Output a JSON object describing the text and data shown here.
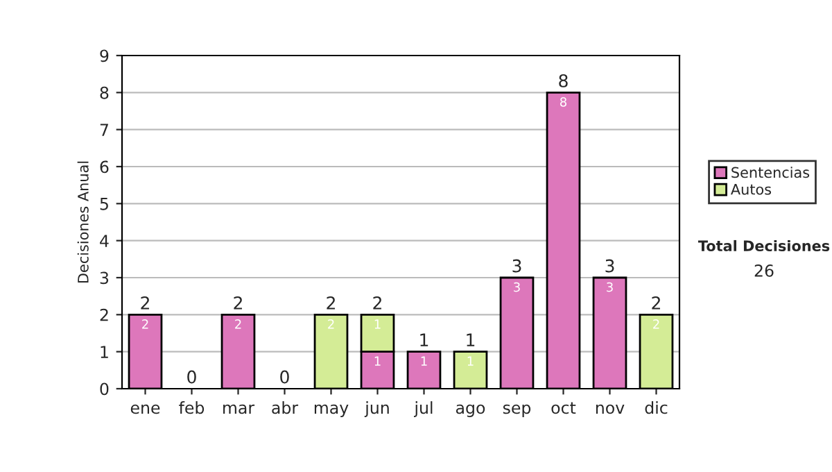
{
  "chart_data": {
    "type": "bar",
    "stacked": true,
    "ylabel": "Decisiones Anual",
    "categories": [
      "ene",
      "feb",
      "mar",
      "abr",
      "may",
      "jun",
      "jul",
      "ago",
      "sep",
      "oct",
      "nov",
      "dic"
    ],
    "series": [
      {
        "name": "Sentencias",
        "color": "#dd77bb",
        "values": [
          2,
          0,
          2,
          0,
          0,
          1,
          1,
          0,
          3,
          8,
          3,
          0
        ],
        "value_labels": [
          "2",
          null,
          "2",
          null,
          null,
          "1",
          "1",
          null,
          "3",
          "8",
          "3",
          null
        ]
      },
      {
        "name": "Autos",
        "color": "#d4ec96",
        "values": [
          0,
          0,
          0,
          0,
          2,
          1,
          0,
          1,
          0,
          0,
          0,
          2
        ],
        "value_labels": [
          null,
          null,
          null,
          null,
          "2",
          "1",
          null,
          "1",
          null,
          null,
          null,
          "2"
        ]
      }
    ],
    "totals": [
      "2",
      "0",
      "2",
      "0",
      "2",
      "2",
      "1",
      "1",
      "3",
      "8",
      "3",
      "2"
    ],
    "ylim": [
      0,
      9
    ],
    "yticks": [
      0,
      1,
      2,
      3,
      4,
      5,
      6,
      7,
      8,
      9
    ],
    "grid": "y",
    "legend": "right",
    "annotations": [
      "Total Decisiones",
      "26"
    ]
  }
}
